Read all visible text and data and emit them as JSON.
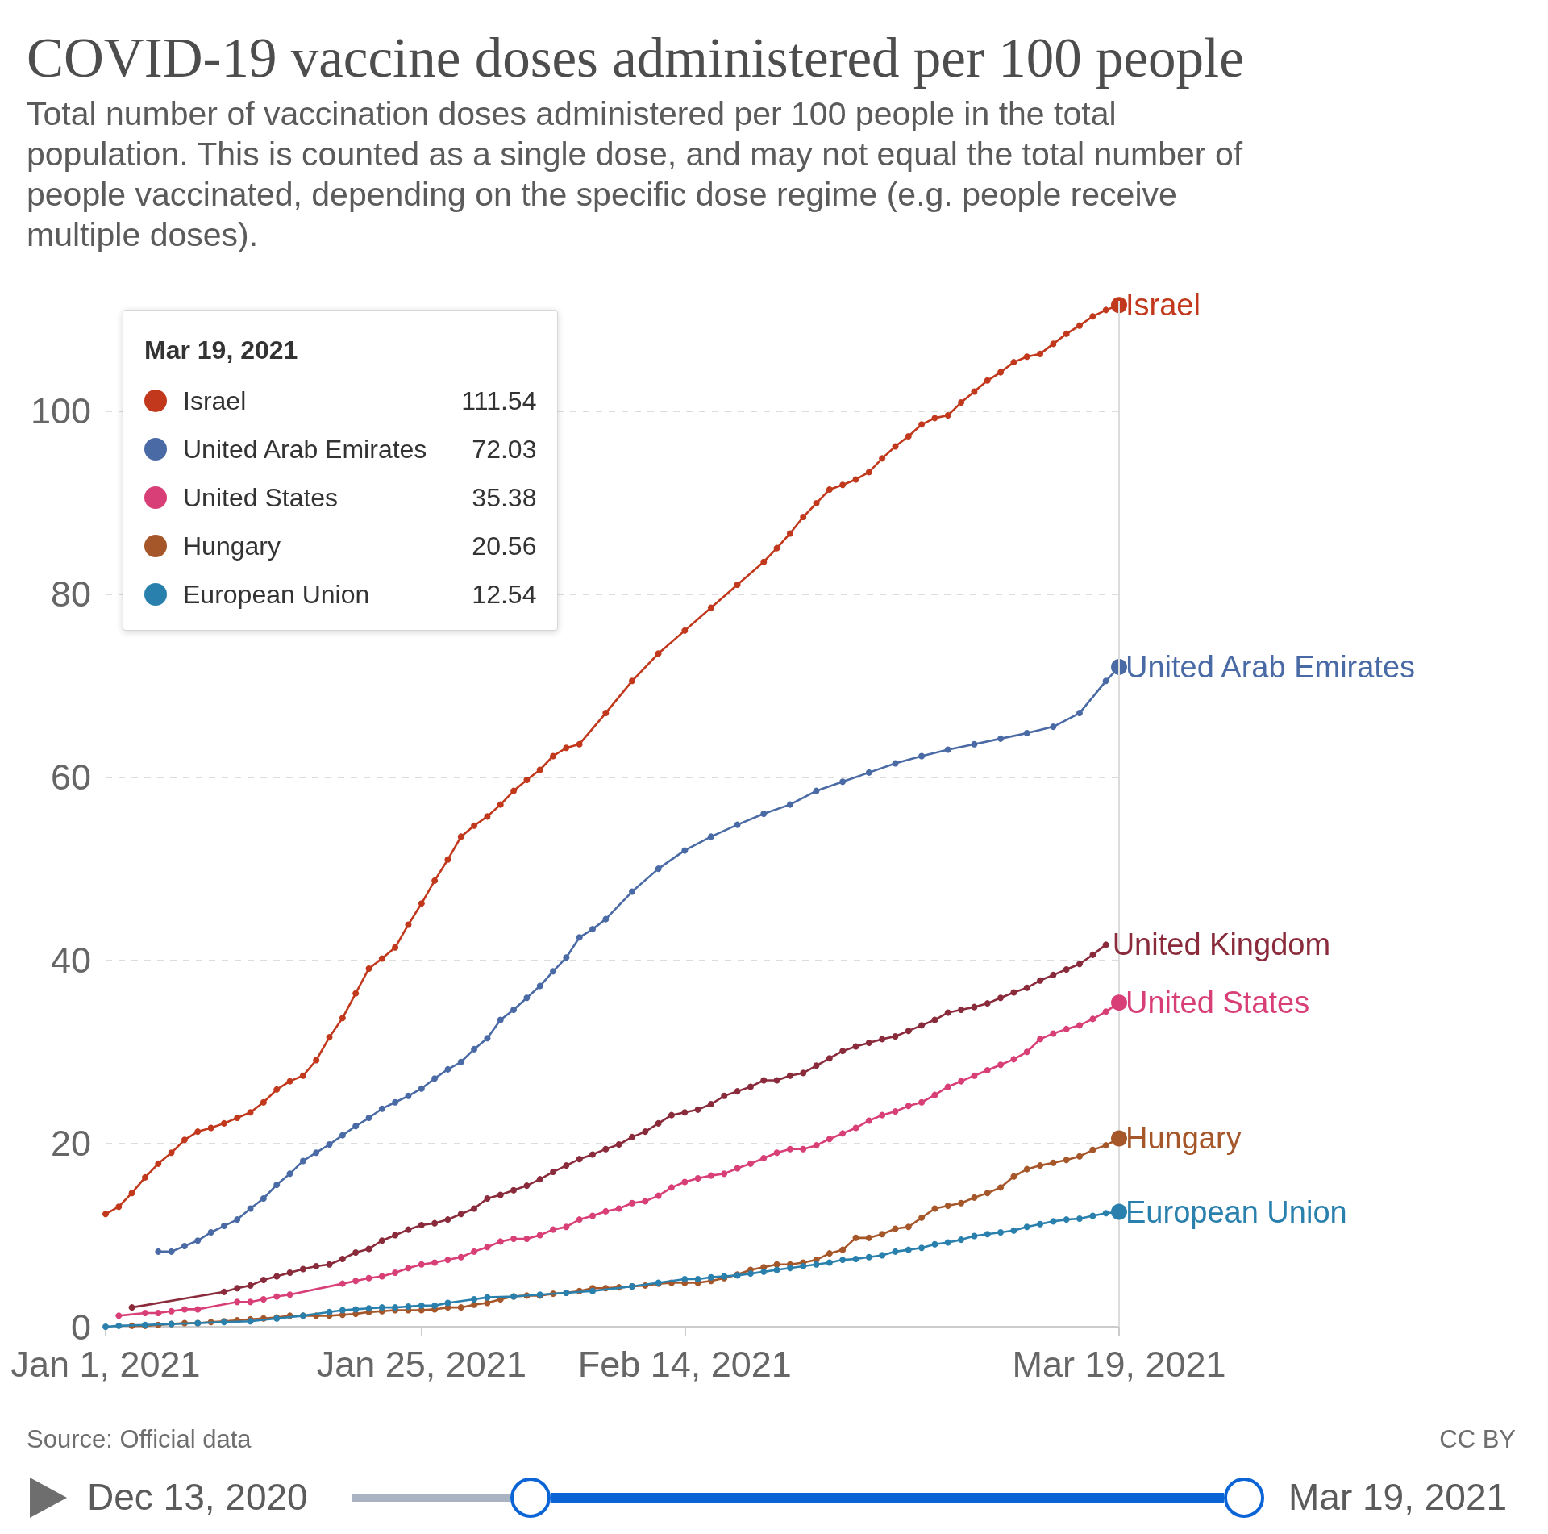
{
  "chart_data": {
    "type": "line",
    "title": "COVID-19 vaccine doses administered per 100 people",
    "subtitle": "Total number of vaccination doses administered per 100 people in the total population. This is counted as a single dose, and may not equal the total number of people vaccinated, depending on the specific dose regime (e.g. people receive multiple doses).",
    "xlim": [
      "2021-01-01",
      "2021-03-19"
    ],
    "xticks": [
      {
        "value": "2021-01-01",
        "label": "Jan 1, 2021"
      },
      {
        "value": "2021-01-25",
        "label": "Jan 25, 2021"
      },
      {
        "value": "2021-02-14",
        "label": "Feb 14, 2021"
      },
      {
        "value": "2021-03-19",
        "label": "Mar 19, 2021"
      }
    ],
    "ylim": [
      0,
      112
    ],
    "yticks": [
      0,
      20,
      40,
      60,
      80,
      100
    ],
    "grid": "y",
    "marker": "circle",
    "line_style": "solid",
    "legend": "top left",
    "legend_title": "Mar 19, 2021",
    "ref_lines": [
      {
        "axis": "x",
        "value": "2021-03-19",
        "color": "#dcdcdc"
      }
    ],
    "annotations": [
      "111.54",
      "72.03",
      "35.38",
      "20.56",
      "12.54",
      "Source: Official data",
      "CC BY",
      "Dec 13, 2020",
      "Mar 19, 2021"
    ],
    "series": [
      {
        "name": "Israel",
        "color": "#c1381c",
        "x": [
          "2021-01-01",
          "2021-01-02",
          "2021-01-03",
          "2021-01-04",
          "2021-01-05",
          "2021-01-06",
          "2021-01-07",
          "2021-01-08",
          "2021-01-09",
          "2021-01-10",
          "2021-01-11",
          "2021-01-12",
          "2021-01-13",
          "2021-01-14",
          "2021-01-15",
          "2021-01-16",
          "2021-01-17",
          "2021-01-18",
          "2021-01-19",
          "2021-01-20",
          "2021-01-21",
          "2021-01-22",
          "2021-01-23",
          "2021-01-24",
          "2021-01-25",
          "2021-01-26",
          "2021-01-27",
          "2021-01-28",
          "2021-01-29",
          "2021-01-30",
          "2021-01-31",
          "2021-02-01",
          "2021-02-02",
          "2021-02-03",
          "2021-02-04",
          "2021-02-05",
          "2021-02-06",
          "2021-02-08",
          "2021-02-10",
          "2021-02-12",
          "2021-02-14",
          "2021-02-16",
          "2021-02-18",
          "2021-02-20",
          "2021-02-21",
          "2021-02-22",
          "2021-02-23",
          "2021-02-24",
          "2021-02-25",
          "2021-02-26",
          "2021-02-27",
          "2021-02-28",
          "2021-03-01",
          "2021-03-02",
          "2021-03-03",
          "2021-03-04",
          "2021-03-05",
          "2021-03-06",
          "2021-03-07",
          "2021-03-08",
          "2021-03-09",
          "2021-03-10",
          "2021-03-11",
          "2021-03-12",
          "2021-03-13",
          "2021-03-14",
          "2021-03-15",
          "2021-03-16",
          "2021-03-17",
          "2021-03-18",
          "2021-03-19"
        ],
        "values": [
          12.3,
          13.1,
          14.6,
          16.3,
          17.8,
          19.0,
          20.4,
          21.3,
          21.7,
          22.2,
          22.8,
          23.4,
          24.5,
          25.9,
          26.8,
          27.4,
          29.1,
          31.6,
          33.7,
          36.4,
          39.1,
          40.2,
          41.4,
          43.9,
          46.2,
          48.7,
          51.0,
          53.5,
          54.7,
          55.7,
          57.0,
          58.5,
          59.7,
          60.8,
          62.3,
          63.2,
          63.6,
          67.0,
          70.5,
          73.5,
          76.0,
          78.5,
          81.0,
          83.5,
          85.0,
          86.6,
          88.4,
          89.9,
          91.4,
          91.9,
          92.5,
          93.3,
          94.8,
          96.1,
          97.2,
          98.5,
          99.2,
          99.5,
          100.9,
          102.1,
          103.3,
          104.2,
          105.3,
          105.9,
          106.2,
          107.3,
          108.4,
          109.3,
          110.3,
          111.0,
          111.54
        ]
      },
      {
        "name": "United Arab Emirates",
        "color": "#4a6aa5",
        "x": [
          "2021-01-05",
          "2021-01-06",
          "2021-01-07",
          "2021-01-08",
          "2021-01-09",
          "2021-01-10",
          "2021-01-11",
          "2021-01-12",
          "2021-01-13",
          "2021-01-14",
          "2021-01-15",
          "2021-01-16",
          "2021-01-17",
          "2021-01-18",
          "2021-01-19",
          "2021-01-20",
          "2021-01-21",
          "2021-01-22",
          "2021-01-23",
          "2021-01-24",
          "2021-01-25",
          "2021-01-26",
          "2021-01-27",
          "2021-01-28",
          "2021-01-29",
          "2021-01-30",
          "2021-01-31",
          "2021-02-01",
          "2021-02-02",
          "2021-02-03",
          "2021-02-04",
          "2021-02-05",
          "2021-02-06",
          "2021-02-07",
          "2021-02-08",
          "2021-02-10",
          "2021-02-12",
          "2021-02-14",
          "2021-02-16",
          "2021-02-18",
          "2021-02-20",
          "2021-02-22",
          "2021-02-24",
          "2021-02-26",
          "2021-02-28",
          "2021-03-02",
          "2021-03-04",
          "2021-03-06",
          "2021-03-08",
          "2021-03-10",
          "2021-03-12",
          "2021-03-14",
          "2021-03-16",
          "2021-03-18",
          "2021-03-19"
        ],
        "values": [
          8.2,
          8.2,
          8.8,
          9.4,
          10.3,
          11.0,
          11.7,
          12.9,
          14.0,
          15.5,
          16.7,
          18.1,
          19.0,
          19.9,
          20.9,
          21.9,
          22.8,
          23.8,
          24.5,
          25.2,
          26.0,
          27.1,
          28.1,
          28.9,
          30.3,
          31.5,
          33.5,
          34.6,
          35.9,
          37.2,
          38.8,
          40.3,
          42.5,
          43.4,
          44.5,
          47.5,
          50.0,
          52.0,
          53.5,
          54.8,
          56.0,
          57.0,
          58.5,
          59.5,
          60.5,
          61.5,
          62.3,
          63.0,
          63.6,
          64.2,
          64.8,
          65.5,
          67.0,
          70.5,
          72.03
        ]
      },
      {
        "name": "United Kingdom",
        "color": "#8a2b3b",
        "x": [
          "2021-01-03",
          "2021-01-10",
          "2021-01-11",
          "2021-01-12",
          "2021-01-13",
          "2021-01-14",
          "2021-01-15",
          "2021-01-16",
          "2021-01-17",
          "2021-01-18",
          "2021-01-19",
          "2021-01-20",
          "2021-01-21",
          "2021-01-22",
          "2021-01-23",
          "2021-01-24",
          "2021-01-25",
          "2021-01-26",
          "2021-01-27",
          "2021-01-28",
          "2021-01-29",
          "2021-01-30",
          "2021-01-31",
          "2021-02-01",
          "2021-02-02",
          "2021-02-03",
          "2021-02-04",
          "2021-02-05",
          "2021-02-06",
          "2021-02-07",
          "2021-02-08",
          "2021-02-09",
          "2021-02-10",
          "2021-02-11",
          "2021-02-12",
          "2021-02-13",
          "2021-02-14",
          "2021-02-15",
          "2021-02-16",
          "2021-02-17",
          "2021-02-18",
          "2021-02-19",
          "2021-02-20",
          "2021-02-21",
          "2021-02-22",
          "2021-02-23",
          "2021-02-24",
          "2021-02-25",
          "2021-02-26",
          "2021-02-27",
          "2021-02-28",
          "2021-03-01",
          "2021-03-02",
          "2021-03-03",
          "2021-03-04",
          "2021-03-05",
          "2021-03-06",
          "2021-03-07",
          "2021-03-08",
          "2021-03-09",
          "2021-03-10",
          "2021-03-11",
          "2021-03-12",
          "2021-03-13",
          "2021-03-14",
          "2021-03-15",
          "2021-03-16",
          "2021-03-17",
          "2021-03-18"
        ],
        "values": [
          2.1,
          3.8,
          4.2,
          4.5,
          5.1,
          5.5,
          5.9,
          6.3,
          6.6,
          6.8,
          7.4,
          8.1,
          8.5,
          9.4,
          10.0,
          10.6,
          11.1,
          11.3,
          11.7,
          12.3,
          12.9,
          14.0,
          14.4,
          14.9,
          15.4,
          16.1,
          16.9,
          17.6,
          18.3,
          18.8,
          19.4,
          19.9,
          20.7,
          21.3,
          22.2,
          23.1,
          23.4,
          23.7,
          24.3,
          25.2,
          25.7,
          26.2,
          26.9,
          26.9,
          27.4,
          27.7,
          28.5,
          29.3,
          30.1,
          30.6,
          31.0,
          31.4,
          31.7,
          32.3,
          32.9,
          33.5,
          34.3,
          34.6,
          34.9,
          35.3,
          35.9,
          36.5,
          37.0,
          37.8,
          38.4,
          39.0,
          39.6,
          40.6,
          41.7
        ]
      },
      {
        "name": "United States",
        "color": "#d83f77",
        "x": [
          "2021-01-02",
          "2021-01-04",
          "2021-01-05",
          "2021-01-06",
          "2021-01-07",
          "2021-01-08",
          "2021-01-11",
          "2021-01-12",
          "2021-01-13",
          "2021-01-14",
          "2021-01-15",
          "2021-01-19",
          "2021-01-20",
          "2021-01-21",
          "2021-01-22",
          "2021-01-23",
          "2021-01-24",
          "2021-01-25",
          "2021-01-26",
          "2021-01-27",
          "2021-01-28",
          "2021-01-29",
          "2021-01-30",
          "2021-01-31",
          "2021-02-01",
          "2021-02-02",
          "2021-02-03",
          "2021-02-04",
          "2021-02-05",
          "2021-02-06",
          "2021-02-07",
          "2021-02-08",
          "2021-02-09",
          "2021-02-10",
          "2021-02-11",
          "2021-02-12",
          "2021-02-13",
          "2021-02-14",
          "2021-02-15",
          "2021-02-16",
          "2021-02-17",
          "2021-02-18",
          "2021-02-19",
          "2021-02-20",
          "2021-02-21",
          "2021-02-22",
          "2021-02-23",
          "2021-02-24",
          "2021-02-25",
          "2021-02-26",
          "2021-02-27",
          "2021-02-28",
          "2021-03-01",
          "2021-03-02",
          "2021-03-03",
          "2021-03-04",
          "2021-03-05",
          "2021-03-06",
          "2021-03-07",
          "2021-03-08",
          "2021-03-09",
          "2021-03-10",
          "2021-03-11",
          "2021-03-12",
          "2021-03-13",
          "2021-03-14",
          "2021-03-15",
          "2021-03-16",
          "2021-03-17",
          "2021-03-18",
          "2021-03-19"
        ],
        "values": [
          1.2,
          1.5,
          1.5,
          1.7,
          1.9,
          1.9,
          2.7,
          2.7,
          3.0,
          3.3,
          3.5,
          4.7,
          5.0,
          5.3,
          5.5,
          5.9,
          6.4,
          6.8,
          7.0,
          7.3,
          7.6,
          8.2,
          8.7,
          9.3,
          9.6,
          9.6,
          10.0,
          10.6,
          10.9,
          11.7,
          12.1,
          12.6,
          12.9,
          13.5,
          13.7,
          14.3,
          15.2,
          15.8,
          16.2,
          16.5,
          16.7,
          17.3,
          17.8,
          18.4,
          19.0,
          19.4,
          19.4,
          19.8,
          20.5,
          21.1,
          21.7,
          22.5,
          23.1,
          23.5,
          24.1,
          24.5,
          25.3,
          26.2,
          26.8,
          27.4,
          28.0,
          28.6,
          29.2,
          30.0,
          31.4,
          32.0,
          32.5,
          32.9,
          33.6,
          34.4,
          35.38
        ]
      },
      {
        "name": "Hungary",
        "color": "#a5572a",
        "x": [
          "2021-01-03",
          "2021-01-04",
          "2021-01-05",
          "2021-01-06",
          "2021-01-07",
          "2021-01-08",
          "2021-01-09",
          "2021-01-10",
          "2021-01-11",
          "2021-01-12",
          "2021-01-13",
          "2021-01-14",
          "2021-01-15",
          "2021-01-16",
          "2021-01-17",
          "2021-01-18",
          "2021-01-19",
          "2021-01-20",
          "2021-01-21",
          "2021-01-22",
          "2021-01-23",
          "2021-01-24",
          "2021-01-25",
          "2021-01-26",
          "2021-01-27",
          "2021-01-28",
          "2021-01-29",
          "2021-01-30",
          "2021-01-31",
          "2021-02-01",
          "2021-02-02",
          "2021-02-03",
          "2021-02-04",
          "2021-02-05",
          "2021-02-06",
          "2021-02-07",
          "2021-02-08",
          "2021-02-09",
          "2021-02-10",
          "2021-02-11",
          "2021-02-12",
          "2021-02-13",
          "2021-02-14",
          "2021-02-15",
          "2021-02-16",
          "2021-02-17",
          "2021-02-18",
          "2021-02-19",
          "2021-02-20",
          "2021-02-21",
          "2021-02-22",
          "2021-02-23",
          "2021-02-24",
          "2021-02-25",
          "2021-02-26",
          "2021-02-27",
          "2021-02-28",
          "2021-03-01",
          "2021-03-02",
          "2021-03-03",
          "2021-03-04",
          "2021-03-05",
          "2021-03-06",
          "2021-03-07",
          "2021-03-08",
          "2021-03-09",
          "2021-03-10",
          "2021-03-11",
          "2021-03-12",
          "2021-03-13",
          "2021-03-14",
          "2021-03-15",
          "2021-03-16",
          "2021-03-17",
          "2021-03-18",
          "2021-03-19"
        ],
        "values": [
          0.1,
          0.1,
          0.2,
          0.3,
          0.4,
          0.4,
          0.5,
          0.6,
          0.7,
          0.8,
          0.9,
          1.0,
          1.2,
          1.2,
          1.2,
          1.2,
          1.3,
          1.4,
          1.6,
          1.7,
          1.8,
          1.8,
          1.8,
          1.9,
          2.1,
          2.1,
          2.4,
          2.6,
          3.0,
          3.3,
          3.4,
          3.4,
          3.6,
          3.7,
          3.9,
          4.2,
          4.2,
          4.3,
          4.4,
          4.5,
          4.7,
          4.8,
          4.8,
          4.8,
          5.0,
          5.3,
          5.7,
          6.2,
          6.5,
          6.8,
          6.8,
          7.0,
          7.3,
          8.0,
          8.4,
          9.7,
          9.7,
          10.1,
          10.7,
          10.9,
          11.9,
          12.9,
          13.2,
          13.5,
          14.1,
          14.6,
          15.2,
          16.4,
          17.2,
          17.6,
          17.9,
          18.2,
          18.6,
          19.3,
          19.8,
          20.56
        ]
      },
      {
        "name": "European Union",
        "color": "#2a80ad",
        "x": [
          "2021-01-01",
          "2021-01-02",
          "2021-01-04",
          "2021-01-06",
          "2021-01-08",
          "2021-01-10",
          "2021-01-12",
          "2021-01-14",
          "2021-01-16",
          "2021-01-18",
          "2021-01-19",
          "2021-01-20",
          "2021-01-21",
          "2021-01-22",
          "2021-01-23",
          "2021-01-24",
          "2021-01-25",
          "2021-01-26",
          "2021-01-27",
          "2021-01-29",
          "2021-01-30",
          "2021-02-01",
          "2021-02-03",
          "2021-02-05",
          "2021-02-07",
          "2021-02-10",
          "2021-02-12",
          "2021-02-14",
          "2021-02-15",
          "2021-02-16",
          "2021-02-17",
          "2021-02-18",
          "2021-02-19",
          "2021-02-20",
          "2021-02-21",
          "2021-02-22",
          "2021-02-23",
          "2021-02-24",
          "2021-02-25",
          "2021-02-26",
          "2021-02-27",
          "2021-02-28",
          "2021-03-01",
          "2021-03-02",
          "2021-03-03",
          "2021-03-04",
          "2021-03-05",
          "2021-03-06",
          "2021-03-07",
          "2021-03-08",
          "2021-03-09",
          "2021-03-10",
          "2021-03-11",
          "2021-03-12",
          "2021-03-13",
          "2021-03-14",
          "2021-03-15",
          "2021-03-16",
          "2021-03-17",
          "2021-03-18",
          "2021-03-19"
        ],
        "values": [
          0.0,
          0.1,
          0.2,
          0.3,
          0.4,
          0.5,
          0.6,
          0.9,
          1.2,
          1.6,
          1.8,
          1.9,
          2.0,
          2.1,
          2.1,
          2.2,
          2.3,
          2.3,
          2.6,
          3.0,
          3.2,
          3.3,
          3.5,
          3.7,
          3.9,
          4.4,
          4.8,
          5.2,
          5.2,
          5.4,
          5.5,
          5.6,
          5.8,
          6.0,
          6.2,
          6.4,
          6.6,
          6.8,
          7.0,
          7.3,
          7.4,
          7.6,
          7.8,
          8.2,
          8.4,
          8.6,
          9.0,
          9.2,
          9.5,
          9.9,
          10.1,
          10.3,
          10.5,
          10.9,
          11.2,
          11.5,
          11.7,
          11.8,
          12.1,
          12.4,
          12.54
        ]
      }
    ]
  }
}
